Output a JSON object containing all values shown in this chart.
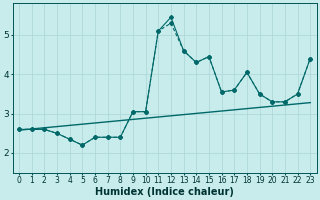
{
  "xlabel": "Humidex (Indice chaleur)",
  "background_color": "#c8ecec",
  "grid_color": "#b0d8d8",
  "line_color": "#006868",
  "xlim": [
    -0.5,
    23.5
  ],
  "ylim": [
    1.5,
    5.8
  ],
  "x": [
    0,
    1,
    2,
    3,
    4,
    5,
    6,
    7,
    8,
    9,
    10,
    11,
    12,
    13,
    14,
    15,
    16,
    17,
    18,
    19,
    20,
    21,
    22,
    23
  ],
  "y_dashed": [
    2.6,
    2.6,
    2.6,
    2.5,
    2.35,
    2.2,
    2.4,
    2.4,
    2.4,
    3.05,
    3.05,
    5.1,
    5.3,
    4.6,
    4.3,
    4.45,
    3.55,
    3.6,
    4.05,
    3.5,
    3.3,
    3.3,
    3.5,
    4.4
  ],
  "y_solid": [
    2.6,
    2.6,
    2.6,
    2.5,
    2.35,
    2.2,
    2.4,
    2.4,
    2.4,
    3.05,
    3.05,
    5.1,
    5.45,
    4.6,
    4.3,
    4.45,
    3.55,
    3.6,
    4.05,
    3.5,
    3.3,
    3.3,
    3.5,
    4.4
  ],
  "trend_x": [
    0,
    23
  ],
  "trend_y": [
    2.58,
    3.28
  ],
  "yticks": [
    2,
    3,
    4,
    5
  ],
  "xticks": [
    0,
    1,
    2,
    3,
    4,
    5,
    6,
    7,
    8,
    9,
    10,
    11,
    12,
    13,
    14,
    15,
    16,
    17,
    18,
    19,
    20,
    21,
    22,
    23
  ],
  "tick_fontsize": 5.5,
  "xlabel_fontsize": 7
}
